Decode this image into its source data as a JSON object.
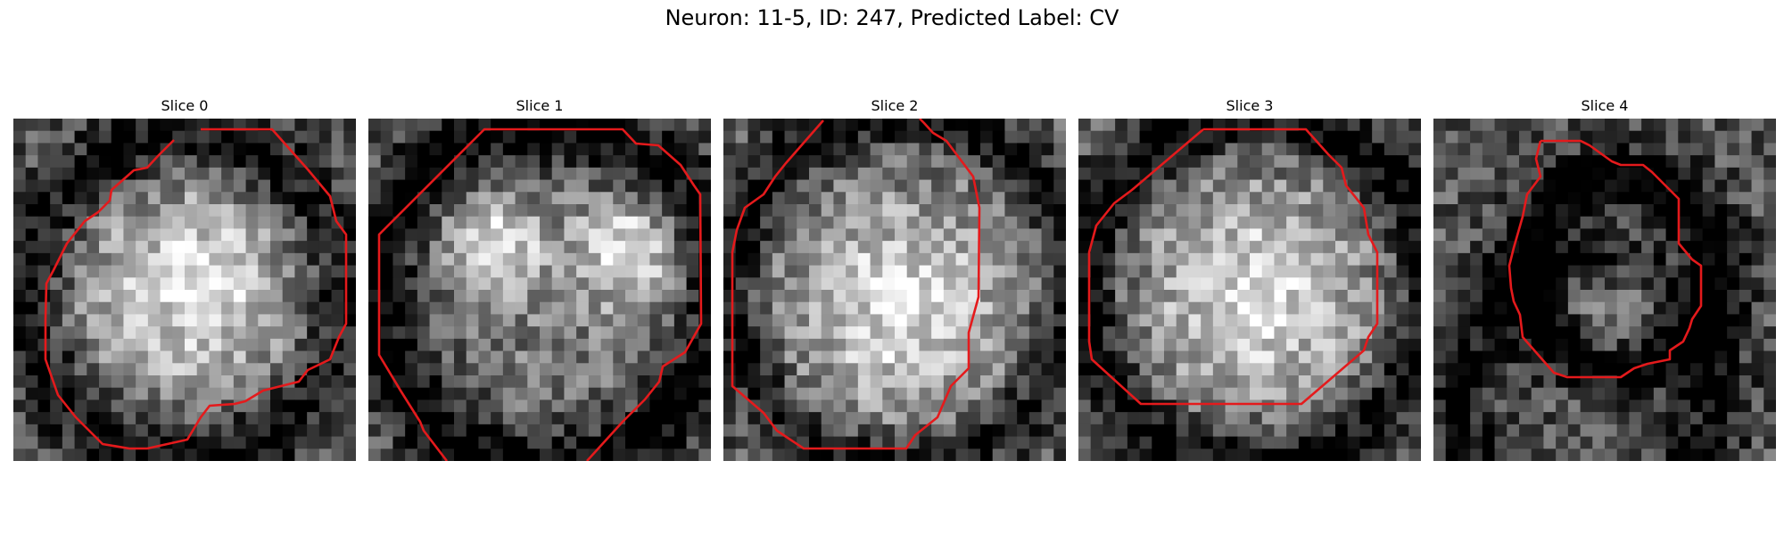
{
  "figure": {
    "title": "Neuron: 11-5, ID: 247, Predicted Label: CV",
    "contour_color": "#e41a1c",
    "colormap": "gray",
    "panels": [
      {
        "title": "Slice 0",
        "seed": 11,
        "blobs": [
          [
            0.52,
            0.5,
            0.34,
            0.55
          ]
        ],
        "dark_rings": [
          [
            0.5,
            0.52,
            0.46,
            0.1,
            0.35
          ]
        ]
      },
      {
        "title": "Slice 1",
        "seed": 23,
        "blobs": [
          [
            0.36,
            0.36,
            0.16,
            0.55
          ],
          [
            0.76,
            0.38,
            0.17,
            0.55
          ],
          [
            0.55,
            0.62,
            0.3,
            0.15
          ]
        ],
        "dark_rings": [
          [
            0.52,
            0.52,
            0.5,
            0.1,
            0.4
          ]
        ]
      },
      {
        "title": "Slice 2",
        "seed": 37,
        "blobs": [
          [
            0.52,
            0.55,
            0.36,
            0.55
          ]
        ],
        "dark_rings": [
          [
            0.52,
            0.5,
            0.5,
            0.08,
            0.35
          ]
        ]
      },
      {
        "title": "Slice 3",
        "seed": 41,
        "blobs": [
          [
            0.52,
            0.52,
            0.36,
            0.55
          ]
        ],
        "dark_rings": [
          [
            0.52,
            0.5,
            0.5,
            0.09,
            0.4
          ]
        ]
      },
      {
        "title": "Slice 4",
        "seed": 53,
        "blobs": [
          [
            0.55,
            0.55,
            0.2,
            0.25
          ]
        ],
        "dark_rings": [
          [
            0.55,
            0.45,
            0.28,
            0.09,
            0.45
          ],
          [
            0.45,
            0.8,
            0.38,
            0.1,
            0.3
          ]
        ]
      }
    ]
  }
}
